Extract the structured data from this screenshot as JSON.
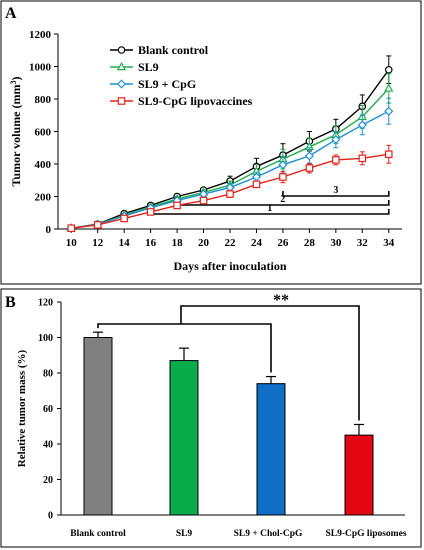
{
  "chart_data": [
    {
      "panel": "A",
      "type": "line",
      "xlabel": "Days after inoculation",
      "ylabel": "Tumor volume (mm",
      "ylabel_sup": "3",
      "ylabel_end": ")",
      "x": [
        10,
        12,
        14,
        16,
        18,
        20,
        22,
        24,
        26,
        28,
        30,
        32,
        34
      ],
      "xlim": [
        9,
        35
      ],
      "ylim": [
        0,
        1200
      ],
      "yticks": [
        0,
        200,
        400,
        600,
        800,
        1000,
        1200
      ],
      "grid": false,
      "legend": "top-left",
      "series": [
        {
          "name": "Blank control",
          "color": "#000000",
          "marker": "circle",
          "values": [
            5,
            30,
            95,
            145,
            200,
            240,
            295,
            385,
            455,
            540,
            615,
            755,
            980
          ],
          "errors": [
            0,
            5,
            10,
            15,
            15,
            15,
            30,
            50,
            70,
            60,
            60,
            70,
            85
          ]
        },
        {
          "name": "SL9",
          "color": "#1fae4a",
          "marker": "triangle",
          "values": [
            5,
            28,
            85,
            135,
            185,
            225,
            270,
            355,
            430,
            505,
            580,
            690,
            865
          ],
          "errors": [
            0,
            5,
            10,
            12,
            15,
            15,
            25,
            40,
            60,
            55,
            55,
            70,
            90
          ]
        },
        {
          "name": "SL9 + CpG",
          "color": "#1f8fd4",
          "marker": "diamond",
          "values": [
            5,
            28,
            80,
            130,
            175,
            215,
            255,
            320,
            395,
            450,
            550,
            640,
            725
          ],
          "errors": [
            0,
            5,
            10,
            12,
            15,
            15,
            25,
            30,
            50,
            50,
            50,
            60,
            80
          ]
        },
        {
          "name": "SL9-CpG lipovaccines",
          "color": "#e2231a",
          "marker": "square",
          "values": [
            5,
            25,
            65,
            105,
            145,
            175,
            215,
            275,
            320,
            375,
            425,
            435,
            460
          ],
          "errors": [
            0,
            5,
            10,
            12,
            15,
            15,
            20,
            20,
            35,
            30,
            30,
            40,
            55
          ]
        }
      ],
      "annotations": [
        {
          "label": "1",
          "from": 16,
          "to": 34
        },
        {
          "label": "2",
          "from": 18,
          "to": 34
        },
        {
          "label": "3",
          "from": 26,
          "to": 34
        }
      ]
    },
    {
      "panel": "B",
      "type": "bar",
      "ylabel": "Relative tumor mass (%)",
      "ylim": [
        0,
        120
      ],
      "yticks": [
        0,
        20,
        40,
        60,
        80,
        100,
        120
      ],
      "grid": false,
      "categories": [
        "Blank control",
        "SL9",
        "SL9 + Chol-CpG",
        "SL9-CpG liposomes"
      ],
      "values": [
        100,
        87,
        74,
        45
      ],
      "errors": [
        3,
        7,
        4,
        6
      ],
      "colors": [
        "#808080",
        "#0aab4b",
        "#0f6fc6",
        "#e30613"
      ],
      "significance": "**"
    }
  ]
}
